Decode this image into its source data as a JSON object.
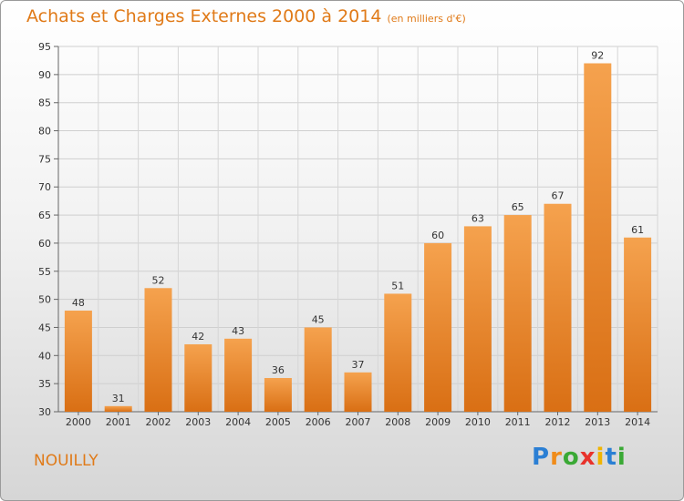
{
  "header": {
    "title": "Achats et Charges Externes 2000 à 2014",
    "subtitle": "(en milliers d'€)"
  },
  "footer": {
    "commune": "NOUILLY",
    "logo_letters": [
      "P",
      "r",
      "o",
      "x",
      "i",
      "t",
      "i"
    ],
    "logo_colors": [
      "#2b7fd4",
      "#f08c1a",
      "#3aa935",
      "#e8322b",
      "#f0b400",
      "#2b7fd4",
      "#3aa935"
    ]
  },
  "chart_data": {
    "type": "bar",
    "title": "Achats et Charges Externes 2000 à 2014",
    "subtitle": "(en milliers d'€)",
    "categories": [
      "2000",
      "2001",
      "2002",
      "2003",
      "2004",
      "2005",
      "2006",
      "2007",
      "2008",
      "2009",
      "2010",
      "2011",
      "2012",
      "2013",
      "2014"
    ],
    "values": [
      48,
      31,
      52,
      42,
      43,
      36,
      45,
      37,
      51,
      60,
      63,
      65,
      67,
      92,
      61
    ],
    "ylim": [
      30,
      95
    ],
    "yticks": [
      30,
      35,
      40,
      45,
      50,
      55,
      60,
      65,
      70,
      75,
      80,
      85,
      90,
      95
    ],
    "grid": true,
    "bar_color_top": "#f5a24e",
    "bar_color_bottom": "#d96f14"
  }
}
